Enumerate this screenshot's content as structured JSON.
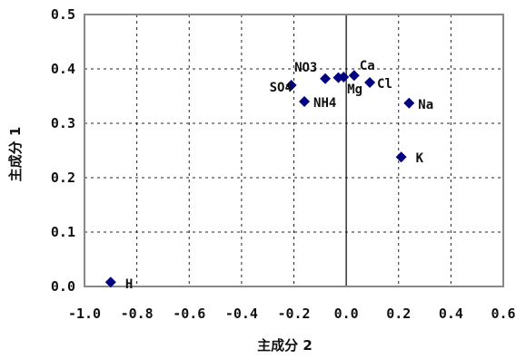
{
  "chart_data": {
    "type": "scatter",
    "title": "",
    "xlabel": "主成分 2",
    "ylabel": "主成分 1",
    "xlim": [
      -1.0,
      0.6
    ],
    "ylim": [
      0.0,
      0.5
    ],
    "x_ticks": [
      "-1.0",
      "-0.8",
      "-0.6",
      "-0.4",
      "-0.2",
      "0.0",
      "0.2",
      "0.4",
      "0.6"
    ],
    "y_ticks": [
      "0.0",
      "0.1",
      "0.2",
      "0.3",
      "0.4",
      "0.5"
    ],
    "x_tick_values": [
      -1.0,
      -0.8,
      -0.6,
      -0.4,
      -0.2,
      0.0,
      0.2,
      0.4,
      0.6
    ],
    "y_tick_values": [
      0.0,
      0.1,
      0.2,
      0.3,
      0.4,
      0.5
    ],
    "grid": true,
    "marker_color": "#000080",
    "points": [
      {
        "label": "H",
        "x": -0.9,
        "y": 0.008
      },
      {
        "label": "SO4",
        "x": -0.21,
        "y": 0.37
      },
      {
        "label": "NH4",
        "x": -0.16,
        "y": 0.34
      },
      {
        "label": "NO3",
        "x": -0.08,
        "y": 0.382
      },
      {
        "label": "",
        "x": -0.03,
        "y": 0.384
      },
      {
        "label": "Mg",
        "x": -0.01,
        "y": 0.385
      },
      {
        "label": "Ca",
        "x": 0.03,
        "y": 0.388
      },
      {
        "label": "Cl",
        "x": 0.09,
        "y": 0.375
      },
      {
        "label": "Na",
        "x": 0.24,
        "y": 0.337
      },
      {
        "label": "K",
        "x": 0.21,
        "y": 0.238
      }
    ]
  }
}
